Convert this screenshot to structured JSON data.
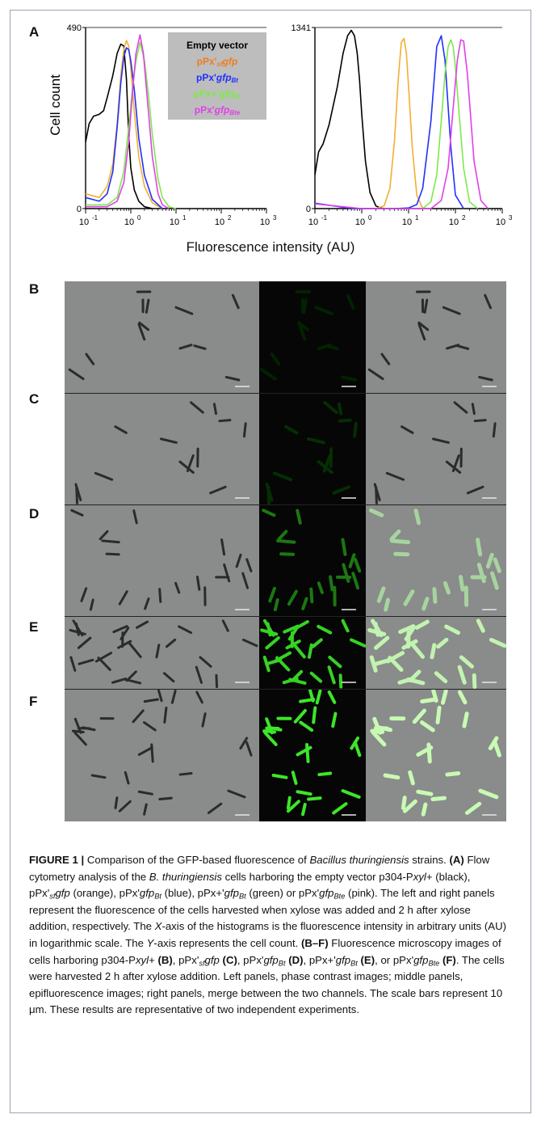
{
  "panel_labels": [
    "A",
    "B",
    "C",
    "D",
    "E",
    "F"
  ],
  "histogram": {
    "ylabel": "Cell count",
    "xlabel": "Fluorescence  intensity  (AU)",
    "x_tick_labels": [
      "10",
      "10",
      "10",
      "10",
      "10"
    ],
    "x_tick_exponents": [
      "-1",
      "0",
      "1",
      "2",
      "3"
    ]
  },
  "chart_data": [
    {
      "type": "line",
      "panel": "A-left",
      "xscale": "log",
      "xlim": [
        0.1,
        1000
      ],
      "ylim": [
        0,
        490
      ],
      "y_tick_labels": [
        "0",
        "490"
      ],
      "legend": {
        "placement": "top-right",
        "background": "#bdbdbd",
        "entries": [
          {
            "text": "Empty vector",
            "color": "#000000"
          },
          {
            "text": "pPx'",
            "sub": "sf",
            "tail": "gfp",
            "tail_sub": "",
            "color": "#f07c1e"
          },
          {
            "text": "pPx'",
            "sub": "",
            "tail": "gfp",
            "tail_sub": "Bt",
            "color": "#2030ff"
          },
          {
            "text": "pPx+'",
            "sub": "",
            "tail": "gfp",
            "tail_sub": "Bt",
            "color": "#7ee84a"
          },
          {
            "text": "pPx'",
            "sub": "",
            "tail": "gfp",
            "tail_sub": "Bte",
            "color": "#e040e8"
          }
        ]
      },
      "series": [
        {
          "color": "#000000",
          "x": [
            0.1,
            0.12,
            0.15,
            0.2,
            0.25,
            0.3,
            0.4,
            0.5,
            0.6,
            0.7,
            0.8,
            0.9,
            1.0,
            1.2,
            1.5,
            2,
            3
          ],
          "y": [
            180,
            230,
            250,
            255,
            265,
            300,
            360,
            420,
            445,
            440,
            350,
            200,
            110,
            50,
            20,
            5,
            0
          ]
        },
        {
          "color": "#f0b030",
          "x": [
            0.1,
            0.2,
            0.3,
            0.4,
            0.5,
            0.6,
            0.7,
            0.8,
            0.9,
            1.0,
            1.2,
            1.5,
            2,
            3,
            5
          ],
          "y": [
            40,
            30,
            60,
            120,
            230,
            360,
            430,
            455,
            440,
            380,
            260,
            140,
            60,
            15,
            0
          ]
        },
        {
          "color": "#2030ff",
          "x": [
            0.1,
            0.2,
            0.3,
            0.4,
            0.5,
            0.6,
            0.7,
            0.8,
            0.9,
            1.0,
            1.2,
            1.5,
            2,
            3,
            5
          ],
          "y": [
            30,
            20,
            40,
            100,
            220,
            340,
            410,
            435,
            430,
            400,
            320,
            190,
            90,
            25,
            0
          ]
        },
        {
          "color": "#7ee84a",
          "x": [
            0.1,
            0.3,
            0.5,
            0.7,
            0.9,
            1.1,
            1.3,
            1.6,
            2,
            2.5,
            3,
            4,
            5,
            7,
            10
          ],
          "y": [
            10,
            10,
            30,
            100,
            220,
            330,
            400,
            450,
            400,
            300,
            200,
            80,
            30,
            5,
            0
          ]
        },
        {
          "color": "#e040e8",
          "x": [
            0.1,
            0.3,
            0.5,
            0.7,
            0.9,
            1.1,
            1.3,
            1.6,
            1.9,
            2.3,
            3,
            4,
            5,
            7
          ],
          "y": [
            5,
            5,
            20,
            70,
            180,
            320,
            420,
            470,
            420,
            300,
            140,
            40,
            10,
            0
          ]
        }
      ]
    },
    {
      "type": "line",
      "panel": "A-right",
      "xscale": "log",
      "xlim": [
        0.1,
        1000
      ],
      "ylim": [
        0,
        1341
      ],
      "y_tick_labels": [
        "0",
        "1341"
      ],
      "series": [
        {
          "color": "#000000",
          "x": [
            0.1,
            0.12,
            0.15,
            0.2,
            0.3,
            0.4,
            0.5,
            0.6,
            0.7,
            0.8,
            0.9,
            1.0,
            1.2,
            1.5,
            2,
            2.5,
            3
          ],
          "y": [
            250,
            420,
            480,
            620,
            900,
            1150,
            1280,
            1320,
            1280,
            1150,
            950,
            700,
            350,
            120,
            20,
            5,
            0
          ]
        },
        {
          "color": "#f0b030",
          "x": [
            2,
            3,
            4,
            5,
            6,
            7,
            8,
            9,
            10,
            12,
            15,
            20
          ],
          "y": [
            0,
            20,
            150,
            500,
            950,
            1230,
            1260,
            1150,
            900,
            450,
            100,
            0
          ]
        },
        {
          "color": "#2030ff",
          "x": [
            0.1,
            0.5,
            1,
            5,
            10,
            15,
            20,
            30,
            40,
            50,
            60,
            80,
            100,
            150
          ],
          "y": [
            40,
            5,
            0,
            0,
            5,
            30,
            150,
            650,
            1200,
            1280,
            1100,
            450,
            100,
            0
          ]
        },
        {
          "color": "#7ee84a",
          "x": [
            20,
            30,
            40,
            50,
            60,
            70,
            80,
            90,
            100,
            120,
            150,
            200,
            300
          ],
          "y": [
            0,
            50,
            250,
            650,
            1000,
            1200,
            1250,
            1200,
            1050,
            700,
            300,
            50,
            0
          ]
        },
        {
          "color": "#e040e8",
          "x": [
            0.1,
            1,
            30,
            50,
            70,
            90,
            110,
            130,
            150,
            180,
            250,
            350,
            500
          ],
          "y": [
            35,
            0,
            0,
            60,
            300,
            750,
            1100,
            1250,
            1240,
            1000,
            350,
            60,
            0
          ]
        }
      ]
    }
  ],
  "micro_rows": [
    "B",
    "C",
    "D",
    "E",
    "F"
  ],
  "micro_green": [
    0.02,
    0.08,
    0.45,
    0.9,
    1.0
  ],
  "caption": {
    "title": "FIGURE 1 |",
    "title_rest": " Comparison of the GFP-based fluorescence of ",
    "species": "Bacillus thuringiensis",
    "s1": " strains. ",
    "pA": "(A)",
    "s2": " Flow cytometry analysis of the ",
    "species_short": "B. thuringiensis",
    "s3": " cells harboring the empty vector p304-P",
    "xyl": "xyl",
    "s4": "+ (black), pPx'",
    "sf": "sf",
    "gfp": "gfp",
    "s5": " (orange), pPx'",
    "bt": "Bt",
    "s6": " (blue), pPx+'",
    "s7": " (green) or pPx'",
    "bte": "Bte",
    "s8": " (pink). The left and right panels represent the fluorescence of the cells harvested when xylose was added and 2 h after xylose addition, respectively. The ",
    "xax": "X",
    "s9": "-axis of the histograms is the fluorescence intensity in arbitrary units (AU) in logarithmic scale. The ",
    "yax": "Y",
    "s10": "-axis represents the cell count. ",
    "pBF": "(B–F)",
    "s11": " Fluorescence microscopy images of cells harboring p304-P",
    "s12": "+ ",
    "pB": "(B)",
    "s13": ", pPx'",
    "pC": "(C)",
    "s14": ", pPx'",
    "pD": "(D)",
    "s15": ", pPx+'",
    "pE": "(E)",
    "s16": ", or pPx'",
    "pF": "(F)",
    "s17": ". The cells were harvested 2 h after xylose addition. Left panels, phase contrast images; middle panels, epifluorescence images; right panels, merge between the two channels. The scale bars represent 10 μm. These results are representative of two independent experiments."
  }
}
